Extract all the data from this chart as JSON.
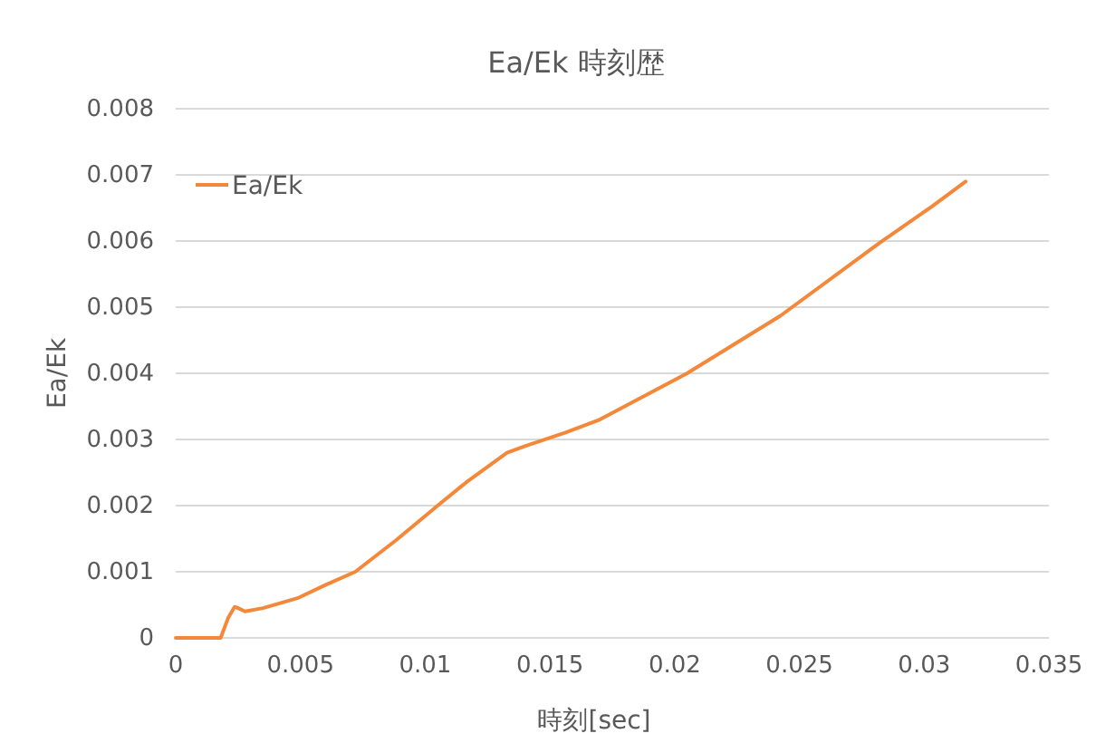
{
  "chart_data": {
    "type": "line",
    "title": "Ea/Ek  時刻歴",
    "xlabel": "時刻[sec]",
    "ylabel": "Ea/Ek",
    "xlim": [
      0,
      0.035
    ],
    "xticks": [
      0,
      0.005,
      0.01,
      0.015,
      0.02,
      0.025,
      0.03,
      0.035
    ],
    "ylim": [
      0,
      0.008
    ],
    "yticks": [
      0,
      0.001,
      0.002,
      0.003,
      0.004,
      0.005,
      0.006,
      0.007,
      0.008
    ],
    "grid": "y",
    "legend": "top left",
    "marker": "none",
    "line_style": "solid",
    "series": [
      {
        "name": "Ea/Ek",
        "color": "#f4883a",
        "x": [
          0,
          0.0018,
          0.0021,
          0.00236,
          0.0025,
          0.00278,
          0.0035,
          0.00488,
          0.006,
          0.0072,
          0.00884,
          0.0105,
          0.01164,
          0.01328,
          0.014,
          0.0156,
          0.017,
          0.0205,
          0.02424,
          0.02821,
          0.0303,
          0.03166
        ],
        "values": [
          0,
          0,
          0.0003,
          0.00047,
          0.00045,
          0.0004,
          0.00045,
          0.0006,
          0.0008,
          0.001,
          0.00148,
          0.002,
          0.00235,
          0.0028,
          0.0029,
          0.0031,
          0.0033,
          0.004,
          0.00487,
          0.00597,
          0.00652,
          0.0069
        ]
      }
    ]
  }
}
